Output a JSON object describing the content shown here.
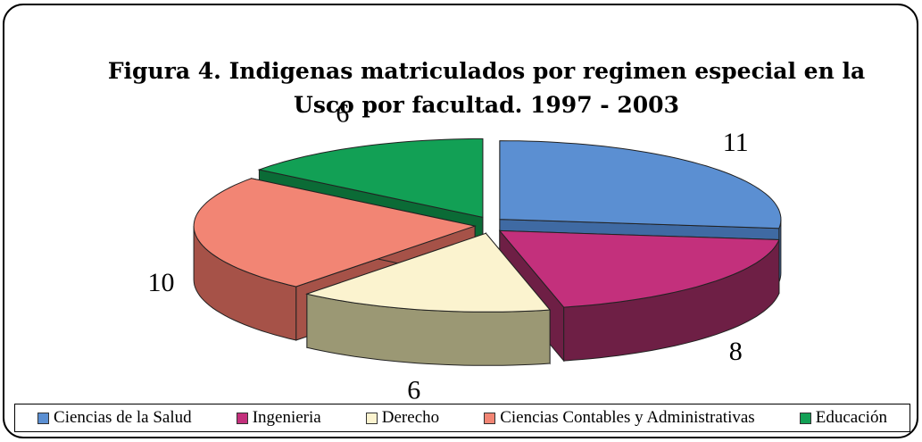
{
  "chart_data": {
    "type": "pie3d",
    "title": [
      "Figura 4. Indigenas matriculados por regimen especial en la",
      "Usco por facultad. 1997 - 2003"
    ],
    "categories": [
      "Ciencias de la Salud",
      "Ingenieria",
      "Derecho",
      "Ciencias Contables y Administrativas",
      "Educación"
    ],
    "values": [
      11,
      8,
      6,
      10,
      6
    ],
    "colors": [
      "#5b8fd2",
      "#c3307c",
      "#fbf3cf",
      "#f28574",
      "#12a055"
    ],
    "side_colors": [
      "#3f6aa3",
      "#6e1f45",
      "#9b9874",
      "#a65248",
      "#0b6b36"
    ],
    "legend": "bottom"
  }
}
